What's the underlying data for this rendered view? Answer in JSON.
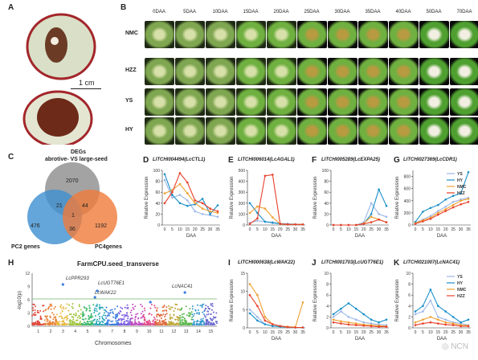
{
  "panels": {
    "A": {
      "letter": "A",
      "scale_label": "1 cm"
    },
    "B": {
      "letter": "B",
      "columns": [
        "0DAA",
        "5DAA",
        "10DAA",
        "15DAA",
        "20DAA",
        "25DAA",
        "30DAA",
        "35DAA",
        "40DAA",
        "50DAA",
        "70DAA"
      ],
      "rows": [
        "NMC",
        "HZZ",
        "YS",
        "HY"
      ]
    },
    "C": {
      "letter": "C",
      "title_line1": "DEGs",
      "title_line2": "abrotive- VS large-seed",
      "left_label": "PC2 genes",
      "right_label": "PC4genes",
      "counts": {
        "top_only": "2070",
        "left_only": "476",
        "right_only": "1192",
        "top_left": "21",
        "top_right": "44",
        "left_right": "36",
        "center": "1"
      },
      "colors": {
        "top": "#8c8c8c",
        "left": "#3d8fd1",
        "right": "#f07b3a"
      }
    },
    "H": {
      "letter": "H",
      "title": "FarmCPU.seed_transverse",
      "xlabel": "Chromosomes",
      "ylabel": "-log10(p)",
      "labels": [
        "LcPPR293",
        "LcUGT76E1",
        "LcWAK22",
        "LcNAC41"
      ]
    }
  },
  "chart_data": [
    {
      "id": "D",
      "letter": "D",
      "type": "line",
      "title": "LITCHI004494(LcCTL1)",
      "xlabel": "DAA",
      "ylabel": "Relative Expression",
      "x": [
        0,
        5,
        10,
        15,
        20,
        25,
        30,
        35
      ],
      "xticks": [
        "0",
        "5",
        "10",
        "15",
        "20",
        "25",
        "30",
        "35"
      ],
      "ylim": [
        0,
        100
      ],
      "yticks": [
        0,
        20,
        40,
        60,
        80,
        100
      ],
      "series": [
        {
          "color": "#9db8e8",
          "values": [
            82,
            50,
            55,
            45,
            25,
            20,
            18,
            15
          ]
        },
        {
          "color": "#1a8fc9",
          "values": [
            93,
            55,
            40,
            35,
            38,
            48,
            20,
            36
          ]
        },
        {
          "color": "#f0a030",
          "values": [
            58,
            64,
            75,
            58,
            40,
            30,
            25,
            22
          ]
        },
        {
          "color": "#e8402a",
          "values": [
            40,
            60,
            95,
            78,
            45,
            40,
            30,
            25
          ]
        }
      ]
    },
    {
      "id": "E",
      "letter": "E",
      "type": "line",
      "title": "LITCHI006014(LcAGAL1)",
      "xlabel": "DAA",
      "ylabel": "Relative Expression",
      "x": [
        0,
        5,
        10,
        15,
        20,
        25,
        30,
        35
      ],
      "xticks": [
        "0",
        "5",
        "10",
        "15",
        "20",
        "25",
        "30",
        "35"
      ],
      "ylim": [
        0,
        500
      ],
      "yticks": [
        0,
        100,
        200,
        300,
        400,
        500
      ],
      "series": [
        {
          "color": "#9db8e8",
          "values": [
            20,
            40,
            30,
            25,
            15,
            10,
            8,
            5
          ]
        },
        {
          "color": "#1a8fc9",
          "values": [
            200,
            110,
            30,
            20,
            10,
            8,
            5,
            5
          ]
        },
        {
          "color": "#f0a030",
          "values": [
            110,
            170,
            150,
            70,
            10,
            5,
            5,
            5
          ]
        },
        {
          "color": "#e8402a",
          "values": [
            10,
            60,
            450,
            460,
            10,
            5,
            5,
            5
          ]
        }
      ]
    },
    {
      "id": "F",
      "letter": "F",
      "type": "line",
      "title": "LITCHI005289(LcEXPA25)",
      "xlabel": "DAA",
      "ylabel": "Relative Expression",
      "x": [
        0,
        5,
        10,
        15,
        20,
        25,
        30,
        35
      ],
      "xticks": [
        "0",
        "5",
        "10",
        "15",
        "20",
        "25",
        "30",
        "35"
      ],
      "ylim": [
        0,
        100
      ],
      "yticks": [
        0,
        20,
        40,
        60,
        80,
        100
      ],
      "series": [
        {
          "color": "#9db8e8",
          "values": [
            0,
            0,
            0,
            0,
            5,
            40,
            20,
            15
          ]
        },
        {
          "color": "#1a8fc9",
          "values": [
            0,
            0,
            0,
            0,
            2,
            20,
            65,
            35
          ]
        },
        {
          "color": "#f0a030",
          "values": [
            0,
            0,
            0,
            0,
            3,
            15,
            10,
            5
          ]
        },
        {
          "color": "#e8402a",
          "values": [
            0,
            0,
            0,
            0,
            2,
            5,
            10,
            5
          ]
        }
      ]
    },
    {
      "id": "G",
      "letter": "G",
      "type": "line",
      "title": "LITCHI027369(LcCDR1)",
      "xlabel": "DAA",
      "ylabel": "Relative Expression",
      "x": [
        0,
        5,
        10,
        15,
        20,
        25,
        30,
        35
      ],
      "xticks": [
        "0",
        "5",
        "10",
        "15",
        "20",
        "25",
        "30",
        "35"
      ],
      "ylim": [
        0,
        900
      ],
      "yticks": [
        0,
        200,
        400,
        600,
        800
      ],
      "legend": [
        "YS",
        "HY",
        "NMC",
        "HZZ"
      ],
      "series": [
        {
          "name": "YS",
          "color": "#9db8e8",
          "values": [
            40,
            90,
            150,
            230,
            300,
            380,
            420,
            450
          ]
        },
        {
          "name": "HY",
          "color": "#1a8fc9",
          "values": [
            50,
            220,
            280,
            330,
            420,
            480,
            520,
            870
          ]
        },
        {
          "name": "NMC",
          "color": "#f0a030",
          "values": [
            30,
            80,
            120,
            200,
            260,
            330,
            400,
            430
          ]
        },
        {
          "name": "HZZ",
          "color": "#e8402a",
          "values": [
            20,
            60,
            100,
            170,
            230,
            290,
            340,
            380
          ]
        }
      ]
    },
    {
      "id": "I",
      "letter": "I",
      "type": "line",
      "title": "LITCHI000638(LcWAK22)",
      "xlabel": "DAA",
      "ylabel": "Relative Expression",
      "x": [
        0,
        5,
        10,
        15,
        20,
        25,
        30,
        35
      ],
      "xticks": [
        "0",
        "5",
        "10",
        "15",
        "20",
        "25",
        "30",
        "35"
      ],
      "ylim": [
        0,
        15
      ],
      "yticks": [
        0,
        5,
        10,
        15
      ],
      "series": [
        {
          "color": "#9db8e8",
          "values": [
            5,
            3,
            1,
            0.5,
            0.3,
            0.2,
            0.1,
            0.1
          ]
        },
        {
          "color": "#1a8fc9",
          "values": [
            4,
            2,
            1,
            0.5,
            0.3,
            0.2,
            0.1,
            0.1
          ]
        },
        {
          "color": "#f0a030",
          "values": [
            12,
            9,
            3,
            1,
            0.5,
            0.3,
            0.2,
            7
          ]
        },
        {
          "color": "#e8402a",
          "values": [
            9,
            6,
            2,
            1,
            0.5,
            0.2,
            0.1,
            0.1
          ]
        }
      ]
    },
    {
      "id": "J",
      "letter": "J",
      "type": "line",
      "title": "LITCHI001703(LcUGT76E1)",
      "xlabel": "DAA",
      "ylabel": "Relative Expression",
      "x": [
        0,
        5,
        10,
        15,
        20,
        25,
        30,
        35
      ],
      "xticks": [
        "0",
        "5",
        "10",
        "15",
        "20",
        "25",
        "30",
        "35"
      ],
      "ylim": [
        0,
        10
      ],
      "yticks": [
        0,
        2,
        4,
        6,
        8,
        10
      ],
      "series": [
        {
          "color": "#9db8e8",
          "values": [
            2,
            3,
            2,
            1.5,
            1,
            0.8,
            0.6,
            0.5
          ]
        },
        {
          "color": "#1a8fc9",
          "values": [
            2.5,
            3.5,
            4.5,
            3.5,
            2.5,
            1.5,
            1,
            1.5
          ]
        },
        {
          "color": "#f0a030",
          "values": [
            1.5,
            1.2,
            1,
            0.8,
            0.6,
            0.5,
            0.4,
            0.3
          ]
        },
        {
          "color": "#e8402a",
          "values": [
            1,
            0.8,
            0.6,
            0.5,
            0.4,
            0.3,
            0.2,
            0.2
          ]
        }
      ]
    },
    {
      "id": "K",
      "letter": "K",
      "type": "line",
      "title": "LITCHI021007(LcNAC41)",
      "xlabel": "DAA",
      "ylabel": "Relative Expression",
      "x": [
        0,
        5,
        10,
        15,
        20,
        25,
        30,
        35
      ],
      "xticks": [
        "0",
        "5",
        "10",
        "15",
        "20",
        "25",
        "30",
        "35"
      ],
      "ylim": [
        0,
        10
      ],
      "yticks": [
        0,
        2,
        4,
        6,
        8,
        10
      ],
      "legend": [
        "YS",
        "HY",
        "NMC",
        "HZZ"
      ],
      "series": [
        {
          "name": "YS",
          "color": "#9db8e8",
          "values": [
            2.5,
            3,
            5,
            2,
            1.5,
            1,
            0.8,
            0.5
          ]
        },
        {
          "name": "HY",
          "color": "#1a8fc9",
          "values": [
            3,
            4,
            7,
            4,
            3,
            2,
            1,
            1.5
          ]
        },
        {
          "name": "NMC",
          "color": "#f0a030",
          "values": [
            1,
            1.5,
            2,
            1.5,
            1,
            0.8,
            0.5,
            0.4
          ]
        },
        {
          "name": "HZZ",
          "color": "#e8402a",
          "values": [
            0.5,
            0.8,
            1,
            0.8,
            0.6,
            0.5,
            0.3,
            0.3
          ]
        }
      ]
    }
  ]
}
